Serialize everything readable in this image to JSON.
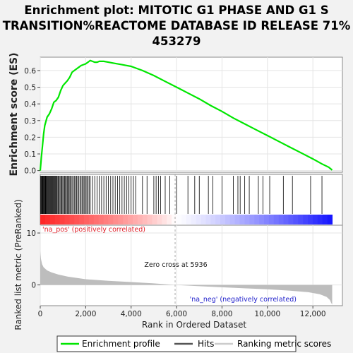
{
  "chart_data": {
    "type": "line",
    "title_lines": [
      "Enrichment plot: MITOTIC G1 PHASE AND G1 S",
      "TRANSITION%REACTOME DATABASE ID RELEASE 71%",
      "453279"
    ],
    "es_panel": {
      "ylabel": "Enrichment score (ES)",
      "ylim": [
        -0.01,
        0.68
      ],
      "yticks": [
        0.0,
        0.1,
        0.2,
        0.3,
        0.4,
        0.5,
        0.6
      ],
      "ytick_labels": [
        "0.0",
        "0.1",
        "0.2",
        "0.3",
        "0.4",
        "0.5",
        "0.6"
      ],
      "series": [
        {
          "name": "Enrichment profile",
          "color": "#00e600",
          "x": [
            0,
            50,
            100,
            150,
            200,
            300,
            400,
            500,
            600,
            700,
            800,
            900,
            1000,
            1100,
            1200,
            1300,
            1400,
            1500,
            1600,
            1700,
            1800,
            1900,
            2000,
            2100,
            2200,
            2300,
            2400,
            2500,
            2600,
            2800,
            3000,
            3200,
            3400,
            3600,
            3800,
            4000,
            4200,
            4500,
            5000,
            5500,
            6000,
            6500,
            7000,
            7500,
            8000,
            8500,
            9000,
            9500,
            10000,
            10500,
            11000,
            11500,
            12000,
            12400,
            12700,
            12850
          ],
          "y": [
            0.0,
            0.08,
            0.15,
            0.22,
            0.27,
            0.32,
            0.34,
            0.37,
            0.41,
            0.42,
            0.44,
            0.48,
            0.51,
            0.525,
            0.54,
            0.56,
            0.59,
            0.6,
            0.61,
            0.62,
            0.63,
            0.635,
            0.64,
            0.65,
            0.66,
            0.655,
            0.65,
            0.65,
            0.655,
            0.655,
            0.65,
            0.645,
            0.64,
            0.635,
            0.63,
            0.625,
            0.615,
            0.6,
            0.57,
            0.535,
            0.5,
            0.465,
            0.43,
            0.39,
            0.355,
            0.315,
            0.28,
            0.245,
            0.21,
            0.175,
            0.14,
            0.105,
            0.07,
            0.04,
            0.02,
            0.003
          ]
        }
      ]
    },
    "hits_panel": {
      "name": "Hits",
      "hit_ranks": [
        20,
        45,
        70,
        95,
        120,
        145,
        170,
        195,
        220,
        245,
        270,
        300,
        330,
        360,
        390,
        420,
        450,
        480,
        510,
        540,
        570,
        600,
        630,
        660,
        690,
        720,
        750,
        790,
        830,
        870,
        910,
        950,
        990,
        1030,
        1070,
        1110,
        1150,
        1190,
        1230,
        1270,
        1310,
        1350,
        1400,
        1450,
        1500,
        1550,
        1600,
        1650,
        1700,
        1750,
        1800,
        1850,
        1900,
        1950,
        2000,
        2050,
        2100,
        2150,
        2200,
        2300,
        2400,
        2500,
        2600,
        2700,
        2800,
        2900,
        3000,
        3100,
        3200,
        3300,
        3400,
        3500,
        3600,
        3700,
        3800,
        3900,
        4000,
        4100,
        4200,
        4500,
        4700,
        5000,
        5100,
        5200,
        5300,
        5500,
        5700,
        6000,
        6500,
        6800,
        7000,
        7400,
        7600,
        8000,
        8500,
        8700,
        8800,
        9000,
        9200,
        9600,
        9800,
        10100,
        10700,
        11100,
        11900,
        12400
      ]
    },
    "metric_panel": {
      "name": "Ranking metric scores",
      "ylabel": "Ranked list metric (PreRanked)",
      "ylim": [
        -4.0,
        11.5
      ],
      "yticks": [
        0,
        10
      ],
      "ytick_labels": [
        "0",
        "10"
      ],
      "values_at_rank": {
        "x": [
          0,
          30,
          80,
          150,
          300,
          500,
          800,
          1200,
          2000,
          3000,
          4000,
          5000,
          5936,
          7000,
          8000,
          9000,
          10000,
          11000,
          11800,
          12300,
          12600,
          12750,
          12800,
          12850
        ],
        "y": [
          6.5,
          5.0,
          4.0,
          3.4,
          2.8,
          2.4,
          2.0,
          1.6,
          1.1,
          0.8,
          0.55,
          0.3,
          0.0,
          -0.25,
          -0.45,
          -0.65,
          -0.85,
          -1.1,
          -1.4,
          -1.8,
          -2.3,
          -2.9,
          -3.4,
          -3.8
        ]
      },
      "zero_cross_label": "Zero cross at 5936",
      "zero_cross": 5936,
      "pos_label": "'na_pos' (positively correlated)",
      "neg_label": "'na_neg' (negatively correlated)"
    },
    "xlabel": "Rank in Ordered Dataset",
    "xlim": [
      0,
      13300
    ],
    "xticks": [
      0,
      2000,
      4000,
      6000,
      8000,
      10000,
      12000
    ],
    "xtick_labels": [
      "0",
      "2,000",
      "4,000",
      "6,000",
      "8,000",
      "10,000",
      "12,000"
    ],
    "n_ranks": 12850,
    "legend": {
      "placement": "bottom",
      "items": [
        {
          "label": "Enrichment profile",
          "color": "#00e600"
        },
        {
          "label": "Hits",
          "color": "#555555"
        },
        {
          "label": "Ranking metric scores",
          "color": "#cccccc"
        }
      ]
    },
    "colors": {
      "es_line": "#00e600",
      "hit_line": "#000000",
      "metric_fill": "#bdbdbd",
      "pos_text": "#e0202a",
      "neg_text": "#2222cc",
      "zero_line": "#aaaaaa"
    }
  }
}
